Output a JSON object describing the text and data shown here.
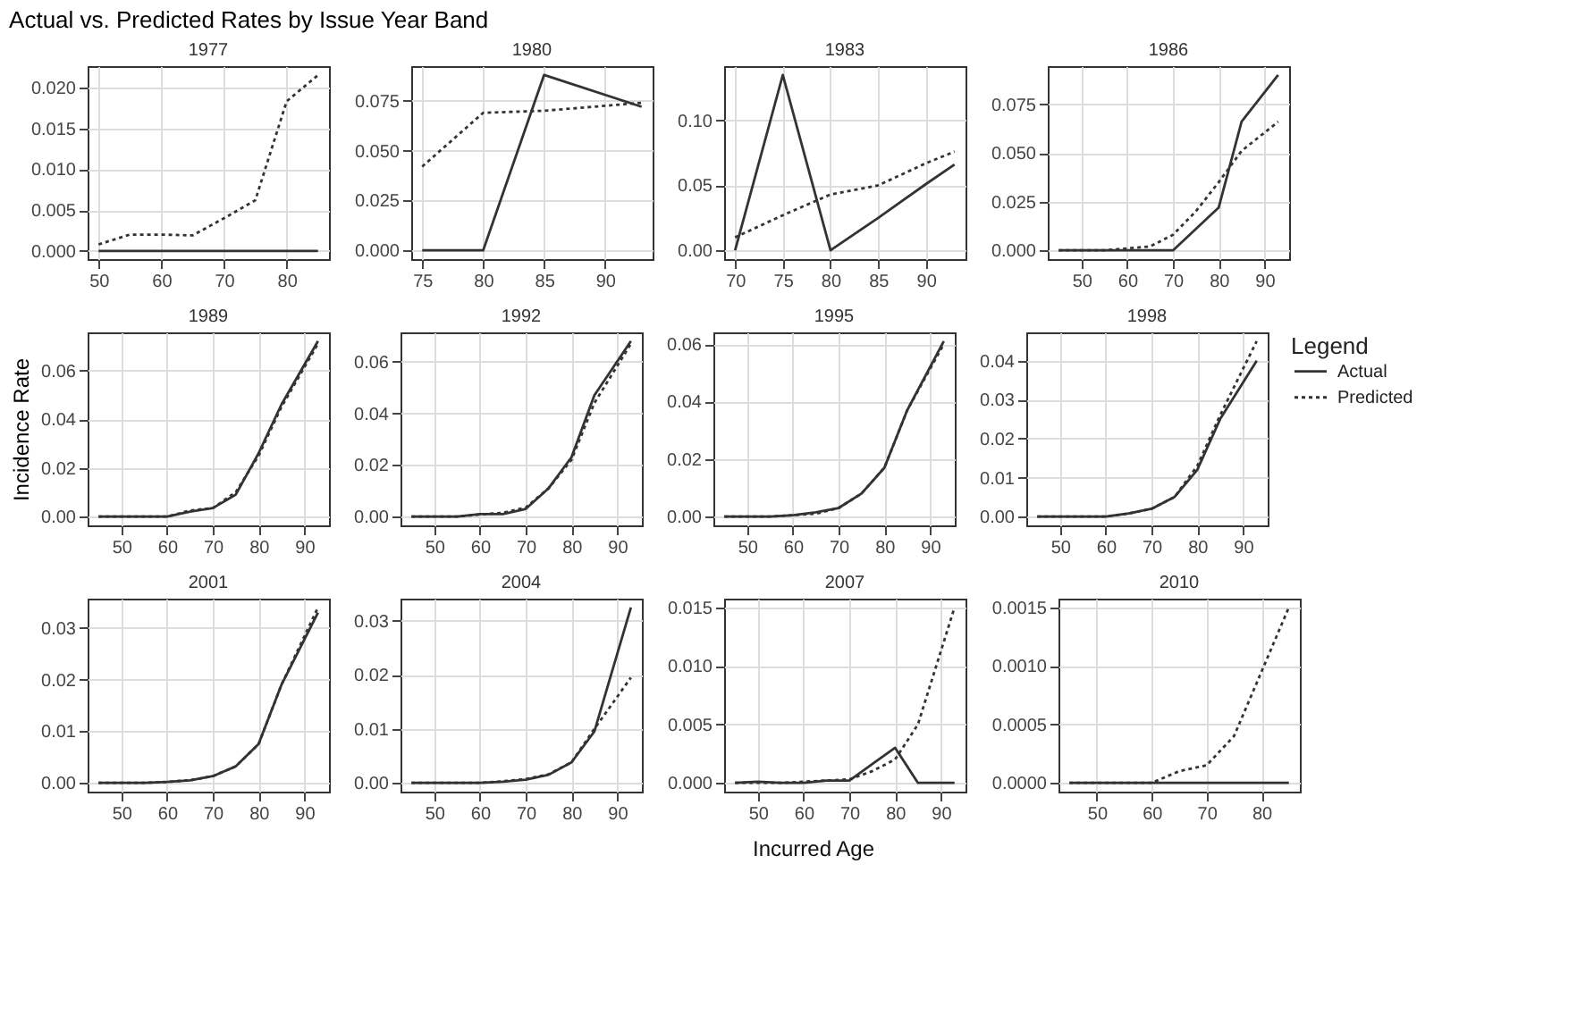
{
  "chart_data": [
    {
      "type": "line",
      "title": "1977",
      "legend": "right",
      "legend_title": "Legend",
      "annotations": [
        "Actual vs. Predicted Rates by Issue Year Band"
      ],
      "xlim": [
        48.25,
        86.75
      ],
      "xticks": [
        50,
        60,
        70,
        80
      ],
      "ylim": [
        -0.001,
        0.0226
      ],
      "yticks": [
        {
          "value": 0,
          "label": "0.000"
        },
        {
          "value": 0.005,
          "label": "0.005"
        },
        {
          "value": 0.01,
          "label": "0.010"
        },
        {
          "value": 0.015,
          "label": "0.015"
        },
        {
          "value": 0.02,
          "label": "0.020"
        }
      ],
      "grid": true,
      "series": [
        {
          "name": "Actual",
          "color": "#333333",
          "line_style": "solid",
          "x": [
            50,
            55,
            60,
            65,
            70,
            75,
            80,
            85
          ],
          "values": [
            0,
            0,
            0,
            0,
            0,
            0,
            0,
            0
          ]
        },
        {
          "name": "Predicted",
          "color": "#333333",
          "line_style": "dotted",
          "x": [
            50,
            55,
            60,
            65,
            70,
            75,
            80,
            85
          ],
          "values": [
            0.0008,
            0.002,
            0.002,
            0.0019,
            0.004,
            0.0062,
            0.0183,
            0.0215
          ]
        }
      ]
    },
    {
      "type": "line",
      "title": "1980",
      "xlim": [
        74.1,
        93.9
      ],
      "xticks": [
        75,
        80,
        85,
        90
      ],
      "ylim": [
        -0.0044,
        0.0924
      ],
      "yticks": [
        {
          "value": 0,
          "label": "0.000"
        },
        {
          "value": 0.025,
          "label": "0.025"
        },
        {
          "value": 0.05,
          "label": "0.050"
        },
        {
          "value": 0.075,
          "label": "0.075"
        }
      ],
      "grid": true,
      "series": [
        {
          "color": "#333333",
          "line_style": "solid",
          "x": [
            75,
            80,
            85,
            93
          ],
          "values": [
            0,
            0,
            0.088,
            0.072
          ]
        },
        {
          "color": "#333333",
          "line_style": "dotted",
          "x": [
            75,
            80,
            85,
            93
          ],
          "values": [
            0.042,
            0.069,
            0.07,
            0.074
          ]
        }
      ]
    },
    {
      "type": "line",
      "title": "1983",
      "xlim": [
        68.85,
        94.15
      ],
      "xticks": [
        70,
        75,
        80,
        85,
        90
      ],
      "ylim": [
        -0.00675,
        0.14175
      ],
      "yticks": [
        {
          "value": 0,
          "label": "0.00"
        },
        {
          "value": 0.05,
          "label": "0.05"
        },
        {
          "value": 0.1,
          "label": "0.10"
        }
      ],
      "grid": true,
      "series": [
        {
          "color": "#333333",
          "line_style": "solid",
          "x": [
            70,
            75,
            80,
            85,
            90,
            93
          ],
          "values": [
            0,
            0.135,
            0,
            0.025,
            0.051,
            0.066
          ]
        },
        {
          "color": "#333333",
          "line_style": "dotted",
          "x": [
            70,
            75,
            80,
            85,
            90,
            93
          ],
          "values": [
            0.01,
            0.027,
            0.043,
            0.05,
            0.067,
            0.076
          ]
        }
      ]
    },
    {
      "type": "line",
      "title": "1986",
      "xlim": [
        42.6,
        95.4
      ],
      "xticks": [
        50,
        60,
        70,
        80,
        90
      ],
      "ylim": [
        -0.0045,
        0.0945
      ],
      "yticks": [
        {
          "value": 0,
          "label": "0.000"
        },
        {
          "value": 0.025,
          "label": "0.025"
        },
        {
          "value": 0.05,
          "label": "0.050"
        },
        {
          "value": 0.075,
          "label": "0.075"
        }
      ],
      "grid": true,
      "series": [
        {
          "color": "#333333",
          "line_style": "solid",
          "x": [
            45,
            50,
            55,
            60,
            65,
            70,
            75,
            80,
            85,
            93
          ],
          "values": [
            0,
            0,
            0,
            0,
            0,
            0,
            0.011,
            0.022,
            0.066,
            0.09
          ]
        },
        {
          "color": "#333333",
          "line_style": "dotted",
          "x": [
            45,
            50,
            55,
            60,
            65,
            70,
            75,
            80,
            85,
            93
          ],
          "values": [
            0,
            0,
            0,
            0.001,
            0.002,
            0.008,
            0.02,
            0.035,
            0.051,
            0.066
          ]
        }
      ]
    },
    {
      "type": "line",
      "title": "1989",
      "ylabel": "Incidence Rate",
      "xlim": [
        42.6,
        95.4
      ],
      "xticks": [
        50,
        60,
        70,
        80,
        90
      ],
      "ylim": [
        -0.0036,
        0.0756
      ],
      "yticks": [
        {
          "value": 0,
          "label": "0.00"
        },
        {
          "value": 0.02,
          "label": "0.02"
        },
        {
          "value": 0.04,
          "label": "0.04"
        },
        {
          "value": 0.06,
          "label": "0.06"
        }
      ],
      "grid": true,
      "series": [
        {
          "color": "#333333",
          "line_style": "solid",
          "x": [
            45,
            50,
            55,
            60,
            65,
            70,
            75,
            80,
            85,
            93
          ],
          "values": [
            0,
            0,
            0,
            0,
            0.002,
            0.0035,
            0.009,
            0.026,
            0.046,
            0.072
          ]
        },
        {
          "color": "#333333",
          "line_style": "dotted",
          "x": [
            45,
            50,
            55,
            60,
            65,
            70,
            75,
            80,
            85,
            93
          ],
          "values": [
            0,
            0,
            0,
            0,
            0.0025,
            0.0035,
            0.01,
            0.025,
            0.045,
            0.071
          ]
        }
      ]
    },
    {
      "type": "line",
      "title": "1992",
      "xlim": [
        42.6,
        95.4
      ],
      "xticks": [
        50,
        60,
        70,
        80,
        90
      ],
      "ylim": [
        -0.0034,
        0.0714
      ],
      "yticks": [
        {
          "value": 0,
          "label": "0.00"
        },
        {
          "value": 0.02,
          "label": "0.02"
        },
        {
          "value": 0.04,
          "label": "0.04"
        },
        {
          "value": 0.06,
          "label": "0.06"
        }
      ],
      "grid": true,
      "series": [
        {
          "color": "#333333",
          "line_style": "solid",
          "x": [
            45,
            50,
            55,
            60,
            65,
            70,
            75,
            80,
            85,
            93
          ],
          "values": [
            0,
            0,
            0,
            0.001,
            0.001,
            0.003,
            0.011,
            0.023,
            0.047,
            0.068
          ]
        },
        {
          "color": "#333333",
          "line_style": "dotted",
          "x": [
            45,
            50,
            55,
            60,
            65,
            70,
            75,
            80,
            85,
            93
          ],
          "values": [
            0,
            0,
            0,
            0.0008,
            0.0015,
            0.0035,
            0.011,
            0.022,
            0.044,
            0.067
          ]
        }
      ]
    },
    {
      "type": "line",
      "title": "1995",
      "xlim": [
        42.6,
        95.4
      ],
      "xticks": [
        50,
        60,
        70,
        80,
        90
      ],
      "ylim": [
        -0.00305,
        0.06405
      ],
      "yticks": [
        {
          "value": 0,
          "label": "0.00"
        },
        {
          "value": 0.02,
          "label": "0.02"
        },
        {
          "value": 0.04,
          "label": "0.04"
        },
        {
          "value": 0.06,
          "label": "0.06"
        }
      ],
      "grid": true,
      "series": [
        {
          "color": "#333333",
          "line_style": "solid",
          "x": [
            45,
            50,
            55,
            60,
            65,
            70,
            75,
            80,
            85,
            93
          ],
          "values": [
            0,
            0,
            0,
            0.0005,
            0.0015,
            0.003,
            0.008,
            0.017,
            0.037,
            0.061
          ]
        },
        {
          "color": "#333333",
          "line_style": "dotted",
          "x": [
            45,
            50,
            55,
            60,
            65,
            70,
            75,
            80,
            85,
            93
          ],
          "values": [
            0,
            0,
            0,
            0.0005,
            0.001,
            0.003,
            0.008,
            0.017,
            0.037,
            0.06
          ]
        }
      ]
    },
    {
      "type": "line",
      "title": "1998",
      "xlim": [
        42.6,
        95.4
      ],
      "xticks": [
        50,
        60,
        70,
        80,
        90
      ],
      "ylim": [
        -0.00225,
        0.04725
      ],
      "yticks": [
        {
          "value": 0,
          "label": "0.00"
        },
        {
          "value": 0.01,
          "label": "0.01"
        },
        {
          "value": 0.02,
          "label": "0.02"
        },
        {
          "value": 0.03,
          "label": "0.03"
        },
        {
          "value": 0.04,
          "label": "0.04"
        }
      ],
      "grid": true,
      "series": [
        {
          "color": "#333333",
          "line_style": "solid",
          "x": [
            45,
            50,
            55,
            60,
            65,
            70,
            75,
            80,
            85,
            93
          ],
          "values": [
            0,
            0,
            0,
            0,
            0.0008,
            0.002,
            0.005,
            0.012,
            0.025,
            0.04
          ]
        },
        {
          "color": "#333333",
          "line_style": "dotted",
          "x": [
            45,
            50,
            55,
            60,
            65,
            70,
            75,
            80,
            85,
            93
          ],
          "values": [
            0,
            0,
            0,
            0,
            0.0008,
            0.002,
            0.005,
            0.013,
            0.026,
            0.045
          ]
        }
      ]
    },
    {
      "type": "line",
      "title": "2001",
      "xlim": [
        42.6,
        95.4
      ],
      "xticks": [
        50,
        60,
        70,
        80,
        90
      ],
      "ylim": [
        -0.0017,
        0.0357
      ],
      "yticks": [
        {
          "value": 0,
          "label": "0.00"
        },
        {
          "value": 0.01,
          "label": "0.01"
        },
        {
          "value": 0.02,
          "label": "0.02"
        },
        {
          "value": 0.03,
          "label": "0.03"
        }
      ],
      "grid": true,
      "series": [
        {
          "color": "#333333",
          "line_style": "solid",
          "x": [
            45,
            50,
            55,
            60,
            65,
            70,
            75,
            80,
            85,
            93
          ],
          "values": [
            0,
            0,
            0,
            0.0002,
            0.0005,
            0.0013,
            0.0032,
            0.0075,
            0.019,
            0.033
          ]
        },
        {
          "color": "#333333",
          "line_style": "dotted",
          "x": [
            45,
            50,
            55,
            60,
            65,
            70,
            75,
            80,
            85,
            93
          ],
          "values": [
            0,
            0,
            0,
            0.0002,
            0.0005,
            0.0013,
            0.0032,
            0.0075,
            0.019,
            0.034
          ]
        }
      ]
    },
    {
      "type": "line",
      "title": "2004",
      "xlabel": "Incurred Age",
      "xlim": [
        42.6,
        95.4
      ],
      "xticks": [
        50,
        60,
        70,
        80,
        90
      ],
      "ylim": [
        -0.001625,
        0.034125
      ],
      "yticks": [
        {
          "value": 0,
          "label": "0.00"
        },
        {
          "value": 0.01,
          "label": "0.01"
        },
        {
          "value": 0.02,
          "label": "0.02"
        },
        {
          "value": 0.03,
          "label": "0.03"
        }
      ],
      "grid": true,
      "series": [
        {
          "color": "#333333",
          "line_style": "solid",
          "x": [
            45,
            50,
            55,
            60,
            65,
            70,
            75,
            80,
            85,
            93
          ],
          "values": [
            0,
            0,
            0,
            0,
            0.0002,
            0.0006,
            0.0015,
            0.0038,
            0.0095,
            0.0325
          ]
        },
        {
          "color": "#333333",
          "line_style": "dotted",
          "x": [
            45,
            50,
            55,
            60,
            65,
            70,
            75,
            80,
            85,
            93
          ],
          "values": [
            0,
            0,
            0,
            0,
            0.0003,
            0.0007,
            0.0016,
            0.0038,
            0.01,
            0.0195
          ]
        }
      ]
    },
    {
      "type": "line",
      "title": "2007",
      "xlim": [
        42.6,
        95.4
      ],
      "xticks": [
        50,
        60,
        70,
        80,
        90
      ],
      "ylim": [
        -0.00075,
        0.01575
      ],
      "yticks": [
        {
          "value": 0,
          "label": "0.000"
        },
        {
          "value": 0.005,
          "label": "0.005"
        },
        {
          "value": 0.01,
          "label": "0.010"
        },
        {
          "value": 0.015,
          "label": "0.015"
        }
      ],
      "grid": true,
      "series": [
        {
          "color": "#333333",
          "line_style": "solid",
          "x": [
            45,
            50,
            55,
            60,
            65,
            70,
            75,
            80,
            85,
            93
          ],
          "values": [
            0,
            0.0001,
            0,
            0,
            0.0002,
            0.0002,
            0.0016,
            0.003,
            0,
            0
          ]
        },
        {
          "color": "#333333",
          "line_style": "dotted",
          "x": [
            45,
            50,
            55,
            60,
            65,
            70,
            75,
            80,
            85,
            93
          ],
          "values": [
            0,
            0,
            0,
            0.0001,
            0.0002,
            0.0003,
            0.001,
            0.002,
            0.005,
            0.015
          ]
        }
      ]
    },
    {
      "type": "line",
      "title": "2010",
      "xlim": [
        43,
        87
      ],
      "xticks": [
        50,
        60,
        70,
        80
      ],
      "ylim": [
        -7.5e-05,
        0.001575
      ],
      "yticks": [
        {
          "value": 0,
          "label": "0.0000"
        },
        {
          "value": 0.0005,
          "label": "0.0005"
        },
        {
          "value": 0.001,
          "label": "0.0010"
        },
        {
          "value": 0.0015,
          "label": "0.0015"
        }
      ],
      "grid": true,
      "series": [
        {
          "color": "#333333",
          "line_style": "solid",
          "x": [
            45,
            50,
            55,
            60,
            65,
            70,
            75,
            80,
            85
          ],
          "values": [
            0,
            0,
            0,
            0,
            0,
            0,
            0,
            0,
            0
          ]
        },
        {
          "color": "#333333",
          "line_style": "dotted",
          "x": [
            45,
            50,
            55,
            60,
            65,
            70,
            75,
            80,
            85
          ],
          "values": [
            0,
            0,
            0,
            0,
            0.0001,
            0.00015,
            0.0004,
            0.00095,
            0.0015
          ]
        }
      ]
    }
  ]
}
